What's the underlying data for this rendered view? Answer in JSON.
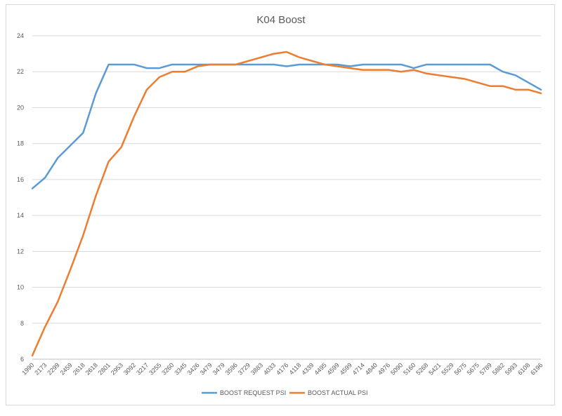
{
  "chart_data": {
    "type": "line",
    "title": "K04 Boost",
    "xlabel": "",
    "ylabel": "",
    "ylim": [
      6,
      24
    ],
    "yticks": [
      6,
      8,
      10,
      12,
      14,
      16,
      18,
      20,
      22,
      24
    ],
    "grid": "horizontal",
    "legend_position": "bottom",
    "categories": [
      "1990",
      "2173",
      "2299",
      "2459",
      "2618",
      "2618",
      "2801",
      "2953",
      "3092",
      "3217",
      "3255",
      "3260",
      "3345",
      "3426",
      "3479",
      "3479",
      "3596",
      "3729",
      "3883",
      "4033",
      "4176",
      "4118",
      "4339",
      "4495",
      "4599",
      "4599",
      "4714",
      "4840",
      "4976",
      "5090",
      "5160",
      "5268",
      "5421",
      "5529",
      "5675",
      "5675",
      "5789",
      "5882",
      "5993",
      "6108",
      "6196"
    ],
    "series": [
      {
        "name": "BOOST REQUEST PSI",
        "color": "#5b9bd5",
        "values": [
          15.5,
          16.1,
          17.2,
          17.9,
          18.6,
          20.8,
          22.4,
          22.4,
          22.4,
          22.2,
          22.2,
          22.4,
          22.4,
          22.4,
          22.4,
          22.4,
          22.4,
          22.4,
          22.4,
          22.4,
          22.3,
          22.4,
          22.4,
          22.4,
          22.4,
          22.3,
          22.4,
          22.4,
          22.4,
          22.4,
          22.2,
          22.4,
          22.4,
          22.4,
          22.4,
          22.4,
          22.4,
          22.0,
          21.8,
          21.4,
          21.0
        ]
      },
      {
        "name": "BOOST ACTUAL PSI",
        "color": "#ed7d31",
        "values": [
          6.2,
          7.8,
          9.2,
          11.0,
          12.9,
          15.1,
          17.0,
          17.8,
          19.5,
          21.0,
          21.7,
          22.0,
          22.0,
          22.3,
          22.4,
          22.4,
          22.4,
          22.6,
          22.8,
          23.0,
          23.1,
          22.8,
          22.6,
          22.4,
          22.3,
          22.2,
          22.1,
          22.1,
          22.1,
          22.0,
          22.1,
          21.9,
          21.8,
          21.7,
          21.6,
          21.4,
          21.2,
          21.2,
          21.0,
          21.0,
          20.8
        ]
      }
    ]
  }
}
